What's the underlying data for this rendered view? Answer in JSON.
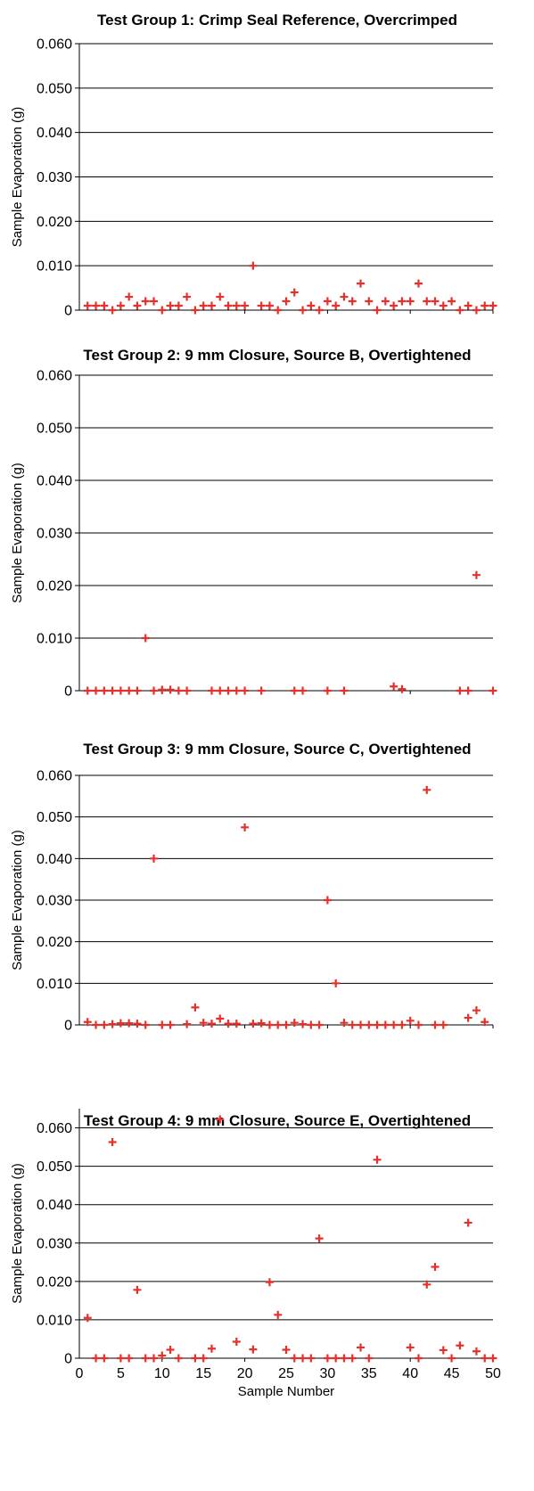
{
  "ylabel": "Sample Evaporation (g)",
  "xlabel": "Sample Number",
  "marker_color": "#e8302a",
  "chart_data": [
    {
      "type": "scatter",
      "title": "Test Group 1: Crimp Seal Reference, Overcrimped",
      "ylabel": "Sample Evaporation (g)",
      "ylim": [
        0,
        0.06
      ],
      "yticks": [
        "0.060",
        "0.050",
        "0.040",
        "0.030",
        "0.020",
        "0.010",
        "0"
      ],
      "xlim": [
        0,
        50
      ],
      "grid": true,
      "x": [
        1,
        2,
        3,
        4,
        5,
        6,
        7,
        8,
        9,
        10,
        11,
        12,
        13,
        14,
        15,
        16,
        17,
        18,
        19,
        20,
        21,
        22,
        23,
        24,
        25,
        26,
        27,
        28,
        29,
        30,
        31,
        32,
        33,
        34,
        35,
        36,
        37,
        38,
        39,
        40,
        41,
        42,
        43,
        44,
        45,
        46,
        47,
        48,
        49,
        50
      ],
      "y": [
        0.001,
        0.001,
        0.001,
        0,
        0.001,
        0.003,
        0.001,
        0.002,
        0.002,
        0,
        0.001,
        0.001,
        0.003,
        0,
        0.001,
        0.001,
        0.003,
        0.001,
        0.001,
        0.001,
        0.01,
        0.001,
        0.001,
        0,
        0.002,
        0.004,
        0,
        0.001,
        0,
        0.002,
        0.001,
        0.003,
        0.002,
        0.006,
        0.002,
        0,
        0.002,
        0.001,
        0.002,
        0.002,
        0.006,
        0.002,
        0.002,
        0.001,
        0.002,
        0,
        0.001,
        0,
        0.001,
        0.001
      ]
    },
    {
      "type": "scatter",
      "title": "Test Group 2: 9 mm Closure, Source B, Overtightened",
      "ylabel": "Sample Evaporation (g)",
      "ylim": [
        0,
        0.06
      ],
      "yticks": [
        "0.060",
        "0.050",
        "0.040",
        "0.030",
        "0.020",
        "0.010",
        "0"
      ],
      "xlim": [
        0,
        50
      ],
      "grid": true,
      "x": [
        1,
        2,
        3,
        4,
        5,
        6,
        7,
        8,
        9,
        10,
        11,
        12,
        13,
        16,
        17,
        18,
        19,
        20,
        22,
        26,
        27,
        30,
        32,
        38,
        39,
        46,
        47,
        48,
        50
      ],
      "y": [
        0,
        0,
        0,
        0,
        0,
        0,
        0,
        0.01,
        0,
        0.0002,
        0.0002,
        0,
        0,
        0,
        0,
        0,
        0,
        0,
        0,
        0,
        0,
        0,
        0,
        0.0008,
        0.0003,
        0,
        0,
        0.022,
        0
      ]
    },
    {
      "type": "scatter",
      "title": "Test Group 3: 9 mm Closure, Source C, Overtightened",
      "ylabel": "Sample Evaporation (g)",
      "ylim": [
        0,
        0.06
      ],
      "yticks": [
        "0.060",
        "0.050",
        "0.040",
        "0.030",
        "0.020",
        "0.010",
        "0"
      ],
      "xlim": [
        0,
        50
      ],
      "grid": true,
      "x": [
        1,
        2,
        3,
        4,
        5,
        6,
        7,
        8,
        9,
        10,
        11,
        13,
        14,
        15,
        16,
        17,
        18,
        19,
        20,
        21,
        22,
        23,
        24,
        25,
        26,
        27,
        28,
        29,
        30,
        31,
        32,
        33,
        34,
        35,
        36,
        37,
        38,
        39,
        40,
        41,
        42,
        43,
        44,
        47,
        48,
        49
      ],
      "y": [
        0.0007,
        0,
        0,
        0.0002,
        0.0004,
        0.0004,
        0.0003,
        0,
        0.04,
        0,
        0,
        0.0002,
        0.0042,
        0.0005,
        0.0003,
        0.0015,
        0.0003,
        0.0003,
        0.0475,
        0.0003,
        0.0004,
        0,
        0,
        0,
        0.0005,
        0.0002,
        0,
        0,
        0.03,
        0.01,
        0.0005,
        0,
        0,
        0,
        0,
        0,
        0,
        0,
        0.001,
        0,
        0.0565,
        0,
        0,
        0.0017,
        0.0035,
        0.0007
      ]
    },
    {
      "type": "scatter",
      "title": "Test Group 4: 9 mm Closure, Source E, Overtightened",
      "xlabel": "Sample Number",
      "ylabel": "Sample Evaporation (g)",
      "ylim": [
        0,
        0.065
      ],
      "yticks": [
        "0.060",
        "0.050",
        "0.040",
        "0.030",
        "0.020",
        "0.010",
        "0"
      ],
      "xticks": [
        "0",
        "5",
        "10",
        "15",
        "20",
        "25",
        "30",
        "35",
        "40",
        "45",
        "50"
      ],
      "xlim": [
        0,
        50
      ],
      "grid": true,
      "x": [
        1,
        2,
        3,
        4,
        5,
        6,
        7,
        8,
        9,
        10,
        11,
        12,
        14,
        15,
        16,
        17,
        19,
        21,
        23,
        24,
        25,
        26,
        27,
        28,
        29,
        30,
        31,
        32,
        33,
        34,
        35,
        36,
        40,
        41,
        42,
        43,
        44,
        45,
        46,
        47,
        48,
        49,
        50
      ],
      "y": [
        0.0105,
        0,
        0,
        0.0563,
        0,
        0,
        0.0178,
        0,
        0,
        0.0007,
        0.0022,
        0,
        0,
        0,
        0.0025,
        0.0622,
        0.0043,
        0.0023,
        0.0198,
        0.0113,
        0.0022,
        0,
        0,
        0,
        0.0312,
        0,
        0,
        0,
        0,
        0.0028,
        0,
        0.0517,
        0.0028,
        0,
        0.0192,
        0.0238,
        0.0021,
        0,
        0.0033,
        0.0353,
        0.0018,
        0,
        0
      ]
    }
  ]
}
